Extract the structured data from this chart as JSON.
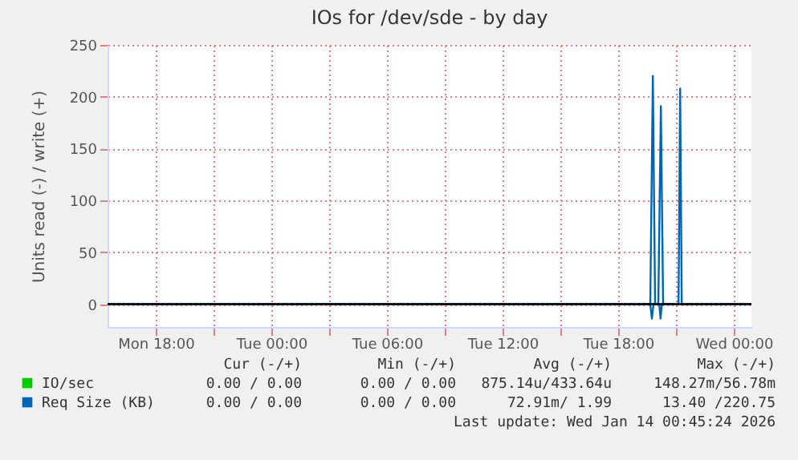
{
  "chart_data": {
    "type": "line",
    "title": "IOs for /dev/sde - by day",
    "ylabel": "Units read (-) / write (+)",
    "xlim": [
      "2026-01-12T15:30",
      "2026-01-14T00:55"
    ],
    "ylim": [
      -22,
      250
    ],
    "yticks": [
      0,
      50,
      100,
      150,
      200,
      250
    ],
    "xticks": [
      {
        "value": "2026-01-12T18:00",
        "label": "Mon 18:00"
      },
      {
        "value": "2026-01-12T21:00",
        "label": null
      },
      {
        "value": "2026-01-13T00:00",
        "label": "Tue 00:00"
      },
      {
        "value": "2026-01-13T03:00",
        "label": null
      },
      {
        "value": "2026-01-13T06:00",
        "label": "Tue 06:00"
      },
      {
        "value": "2026-01-13T09:00",
        "label": null
      },
      {
        "value": "2026-01-13T12:00",
        "label": "Tue 12:00"
      },
      {
        "value": "2026-01-13T15:00",
        "label": null
      },
      {
        "value": "2026-01-13T18:00",
        "label": "Tue 18:00"
      },
      {
        "value": "2026-01-13T21:00",
        "label": null
      },
      {
        "value": "2026-01-14T00:00",
        "label": "Wed 00:00"
      }
    ],
    "grid": true,
    "legend": "bottom",
    "line_style": "solid",
    "marker": "none",
    "ref_lines": [
      {
        "axis": "y",
        "value": 0,
        "color": "#000000"
      }
    ],
    "series": [
      {
        "name": "IO/sec",
        "color": "#00cc00"
      },
      {
        "name": "Req Size (KB)",
        "color": "#0066b3",
        "x": [
          "2026-01-12T15:30",
          "2026-01-13T19:40",
          "2026-01-13T19:48",
          "2026-01-13T19:55",
          "2026-01-13T20:05",
          "2026-01-13T20:13",
          "2026-01-13T20:20",
          "2026-01-13T21:08",
          "2026-01-13T21:13",
          "2026-01-13T21:18",
          "2026-01-14T00:55"
        ],
        "values": [
          0,
          0,
          220,
          0,
          0,
          191,
          0,
          0,
          208,
          0,
          0
        ]
      },
      {
        "color": "#0066b3",
        "x": [
          "2026-01-13T19:40",
          "2026-01-13T19:45",
          "2026-01-13T19:50",
          "2026-01-13T20:08",
          "2026-01-13T20:12",
          "2026-01-13T20:16"
        ],
        "values": [
          0,
          -14,
          0,
          0,
          -14,
          0
        ]
      }
    ],
    "annotations": [
      "Cur (-/+)",
      "Min (-/+)",
      "Avg (-/+)",
      "Max (-/+)",
      "0.00 / 0.00",
      "0.00 / 0.00",
      "875.14u/433.64u",
      "148.27m/56.78m",
      "0.00 / 0.00",
      "0.00 / 0.00",
      "72.91m/ 1.99",
      "13.40 /220.75",
      "Last update: Wed Jan 14 00:45:24 2026"
    ]
  }
}
